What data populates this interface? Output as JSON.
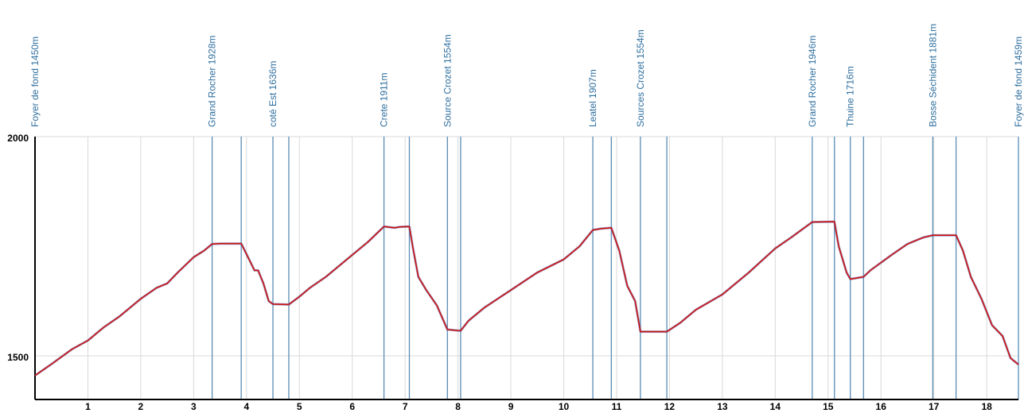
{
  "chart_data": {
    "type": "line",
    "title": "",
    "xlabel": "",
    "ylabel": "",
    "xlim": [
      0,
      18.6
    ],
    "ylim": [
      1450,
      2000
    ],
    "y_tick_labels": [
      "2000",
      "1500"
    ],
    "y_ticks": [
      2000,
      1500
    ],
    "x_ticks": [
      1,
      2,
      3,
      4,
      5,
      6,
      7,
      8,
      9,
      10,
      11,
      12,
      13,
      14,
      15,
      16,
      17,
      18
    ],
    "x_tick_labels": [
      "1",
      "2",
      "3",
      "4",
      "5",
      "6",
      "7",
      "8",
      "9",
      "10",
      "11",
      "12",
      "13",
      "14",
      "15",
      "16",
      "17",
      "18"
    ],
    "grid": true,
    "colors": {
      "line": "#cc1111",
      "line_overlay": "#5566aa",
      "grid": "#d9d9d9",
      "marker": "#5a8db5",
      "label": "#2f6f9f",
      "axis": "#000000"
    },
    "waypoints": [
      {
        "x": 0.0,
        "label": "Foyer de fond  1450m"
      },
      {
        "x": 3.35,
        "label": "Grand Rocher  1928m"
      },
      {
        "x": 3.9,
        "label": ""
      },
      {
        "x": 4.5,
        "label": "coté Est  1636m"
      },
      {
        "x": 4.8,
        "label": ""
      },
      {
        "x": 6.6,
        "label": "Crete  1911m"
      },
      {
        "x": 7.08,
        "label": ""
      },
      {
        "x": 7.8,
        "label": "Source Crozet  1554m"
      },
      {
        "x": 8.05,
        "label": ""
      },
      {
        "x": 10.55,
        "label": "Leatel  1907m"
      },
      {
        "x": 10.9,
        "label": ""
      },
      {
        "x": 11.45,
        "label": "Sources Crozet  1554m"
      },
      {
        "x": 11.95,
        "label": ""
      },
      {
        "x": 14.7,
        "label": "Grand Rocher  1946m"
      },
      {
        "x": 15.12,
        "label": ""
      },
      {
        "x": 15.42,
        "label": "Thuine  1716m"
      },
      {
        "x": 15.67,
        "label": ""
      },
      {
        "x": 16.98,
        "label": "Bosse Séchident  1881m"
      },
      {
        "x": 17.42,
        "label": ""
      },
      {
        "x": 18.6,
        "label": "Foyer de fond  1459m"
      }
    ],
    "series": [
      {
        "x": [
          0.0,
          0.3,
          0.7,
          1.0,
          1.3,
          1.6,
          2.0,
          2.3,
          2.5,
          2.7,
          3.0,
          3.2,
          3.35,
          3.5,
          3.9,
          4.05,
          4.15,
          4.22,
          4.32,
          4.42,
          4.5,
          4.8,
          5.0,
          5.2,
          5.5,
          6.0,
          6.3,
          6.6,
          6.8,
          6.9,
          7.08,
          7.15,
          7.25,
          7.4,
          7.6,
          7.8,
          8.05,
          8.2,
          8.5,
          9.0,
          9.5,
          10.0,
          10.3,
          10.55,
          10.7,
          10.9,
          11.05,
          11.2,
          11.35,
          11.45,
          11.95,
          12.2,
          12.5,
          13.0,
          13.5,
          14.0,
          14.3,
          14.7,
          15.12,
          15.2,
          15.35,
          15.42,
          15.67,
          15.8,
          16.2,
          16.5,
          16.8,
          16.98,
          17.42,
          17.55,
          17.7,
          17.9,
          18.1,
          18.3,
          18.45,
          18.6
        ],
        "values": [
          1455,
          1480,
          1515,
          1535,
          1565,
          1590,
          1630,
          1655,
          1665,
          1690,
          1725,
          1740,
          1755,
          1756,
          1756,
          1720,
          1695,
          1695,
          1665,
          1625,
          1618,
          1617,
          1635,
          1655,
          1680,
          1730,
          1760,
          1795,
          1792,
          1794,
          1795,
          1745,
          1680,
          1650,
          1615,
          1560,
          1557,
          1580,
          1610,
          1650,
          1690,
          1720,
          1750,
          1787,
          1790,
          1792,
          1740,
          1660,
          1625,
          1555,
          1555,
          1575,
          1605,
          1640,
          1690,
          1745,
          1770,
          1805,
          1806,
          1750,
          1690,
          1675,
          1680,
          1695,
          1730,
          1755,
          1770,
          1775,
          1775,
          1740,
          1680,
          1630,
          1570,
          1545,
          1495,
          1480
        ]
      }
    ]
  }
}
